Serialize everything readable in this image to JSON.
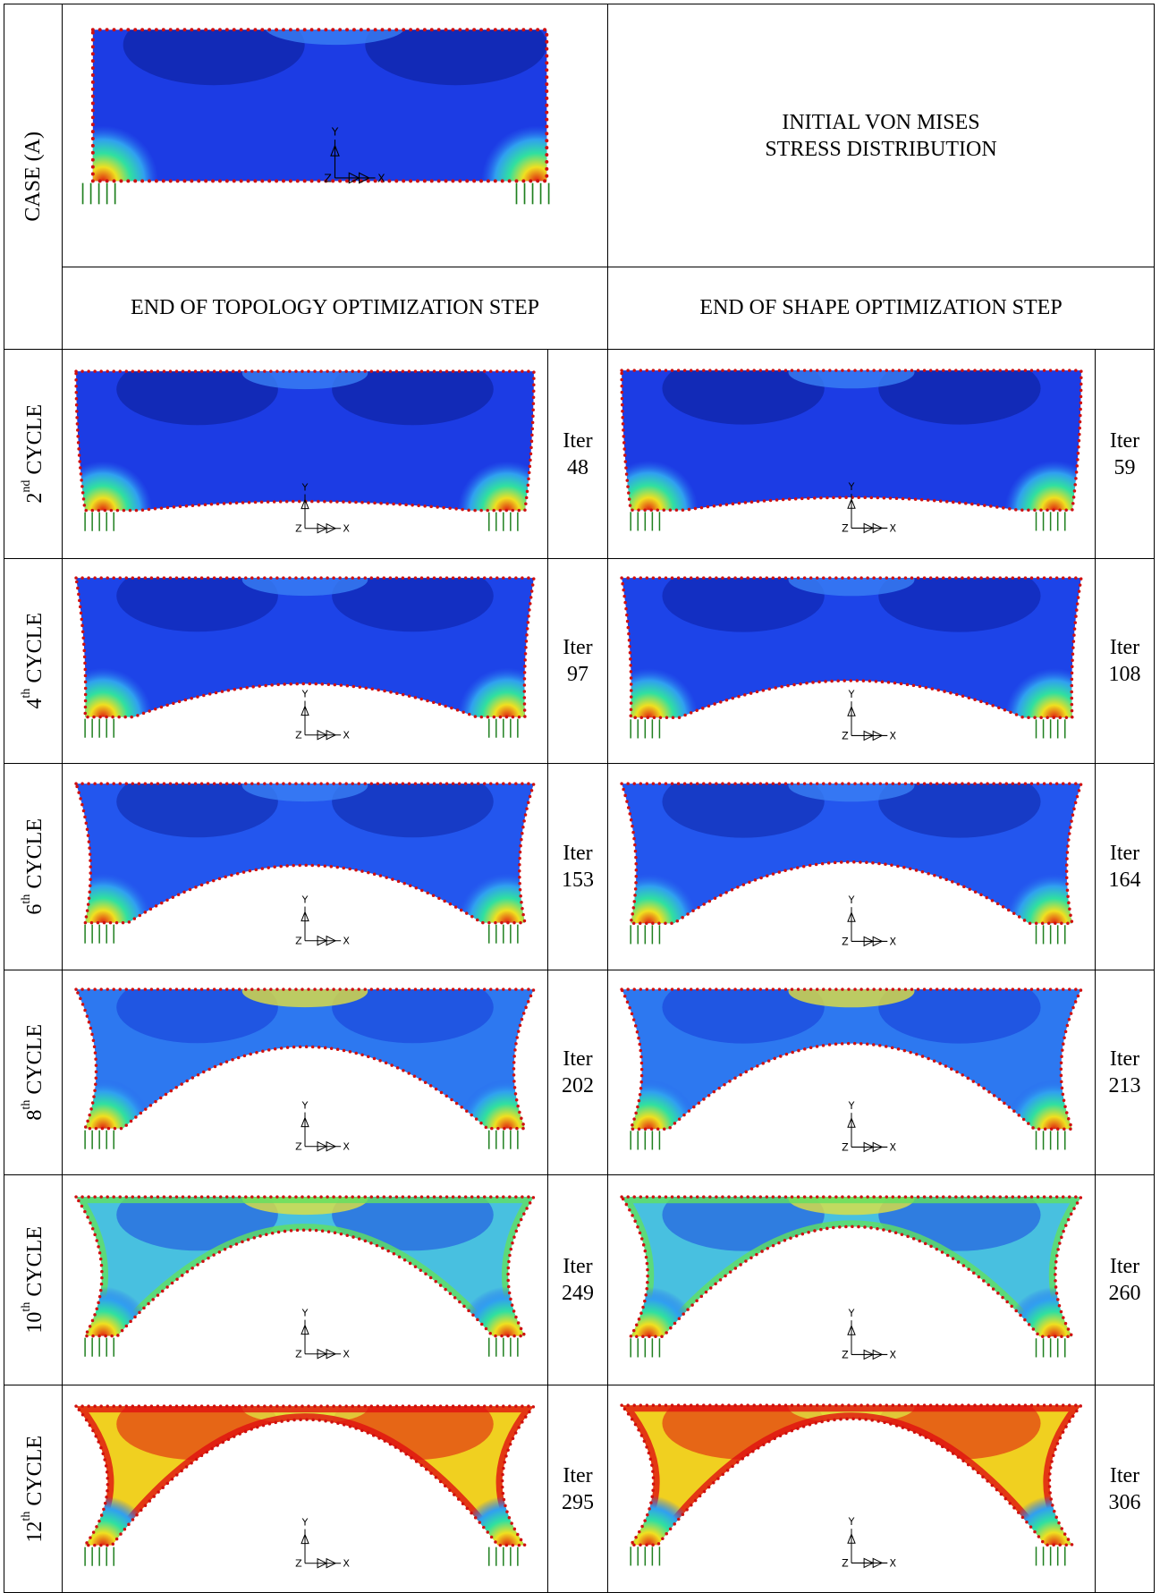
{
  "case_row": {
    "label": "CASE (A)",
    "caption": [
      "INITIAL VON MISES",
      "STRESS DISTRIBUTION"
    ]
  },
  "column_headers": [
    "END OF TOPOLOGY OPTIMIZATION STEP",
    "END OF SHAPE OPTIMIZATION STEP"
  ],
  "iter_label": "Iter",
  "triad": {
    "x": "X",
    "y": "Y",
    "z": "Z"
  },
  "rows": [
    {
      "ordinal": "2",
      "suffix": "nd",
      "word": "CYCLE",
      "topology_iter": 48,
      "shape_iter": 59
    },
    {
      "ordinal": "4",
      "suffix": "th",
      "word": "CYCLE",
      "topology_iter": 97,
      "shape_iter": 108
    },
    {
      "ordinal": "6",
      "suffix": "th",
      "word": "CYCLE",
      "topology_iter": 153,
      "shape_iter": 164
    },
    {
      "ordinal": "8",
      "suffix": "th",
      "word": "CYCLE",
      "topology_iter": 202,
      "shape_iter": 213
    },
    {
      "ordinal": "10",
      "suffix": "th",
      "word": "CYCLE",
      "topology_iter": 249,
      "shape_iter": 260
    },
    {
      "ordinal": "12",
      "suffix": "th",
      "word": "CYCLE",
      "topology_iter": 295,
      "shape_iter": 306
    }
  ]
}
